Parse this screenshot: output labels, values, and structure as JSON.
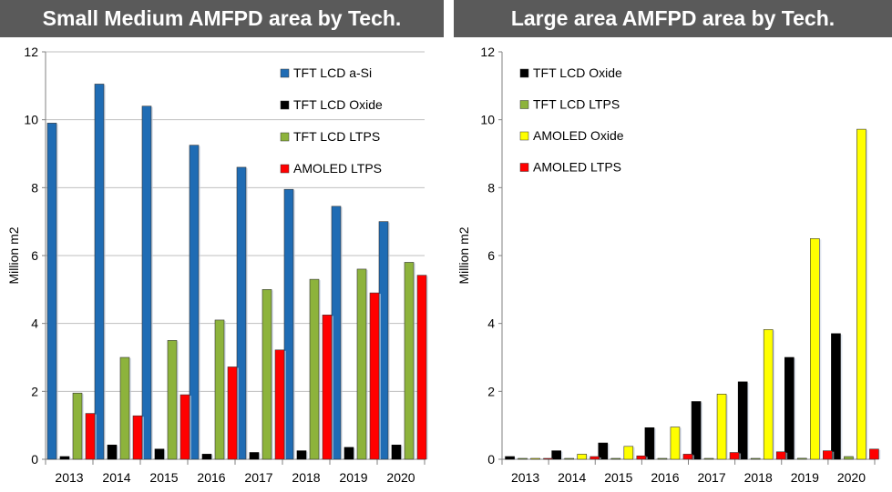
{
  "chart_data": [
    {
      "type": "bar",
      "title": "Small Medium AMFPD area by Tech.",
      "xlabel": "",
      "ylabel": "Million m2",
      "ylim": [
        0,
        12
      ],
      "yticks": [
        0,
        2,
        4,
        6,
        8,
        10,
        12
      ],
      "grid": true,
      "legend_position": "top-right",
      "categories": [
        "2013",
        "2014",
        "2015",
        "2016",
        "2017",
        "2018",
        "2019",
        "2020"
      ],
      "series": [
        {
          "name": "TFT LCD a-Si",
          "color": "#1f6cb4",
          "values": [
            9.9,
            11.05,
            10.4,
            9.25,
            8.6,
            7.95,
            7.45,
            7.0
          ]
        },
        {
          "name": "TFT LCD Oxide",
          "color": "#000000",
          "values": [
            0.08,
            0.42,
            0.3,
            0.15,
            0.2,
            0.25,
            0.35,
            0.42
          ]
        },
        {
          "name": "TFT LCD LTPS",
          "color": "#8db33c",
          "values": [
            1.95,
            3.0,
            3.5,
            4.1,
            5.0,
            5.3,
            5.6,
            5.8
          ]
        },
        {
          "name": "AMOLED LTPS",
          "color": "#ff0000",
          "values": [
            1.35,
            1.28,
            1.9,
            2.72,
            3.22,
            4.25,
            4.9,
            5.42
          ]
        }
      ]
    },
    {
      "type": "bar",
      "title": "Large area AMFPD area by Tech.",
      "xlabel": "",
      "ylabel": "Million m2",
      "ylim": [
        0,
        12
      ],
      "yticks": [
        0,
        2,
        4,
        6,
        8,
        10,
        12
      ],
      "grid": false,
      "legend_position": "top-left",
      "categories": [
        "2013",
        "2014",
        "2015",
        "2016",
        "2017",
        "2018",
        "2019",
        "2020"
      ],
      "series": [
        {
          "name": "TFT LCD Oxide",
          "color": "#000000",
          "values": [
            0.08,
            0.25,
            0.48,
            0.93,
            1.7,
            2.28,
            3.0,
            3.7
          ]
        },
        {
          "name": "TFT LCD LTPS",
          "color": "#8db33c",
          "values": [
            0.02,
            0.02,
            0.02,
            0.02,
            0.02,
            0.02,
            0.03,
            0.08
          ]
        },
        {
          "name": "AMOLED Oxide",
          "color": "#ffff00",
          "values": [
            0.02,
            0.15,
            0.38,
            0.95,
            1.92,
            3.82,
            6.5,
            9.72
          ]
        },
        {
          "name": "AMOLED LTPS",
          "color": "#ff0000",
          "values": [
            0.01,
            0.08,
            0.1,
            0.15,
            0.2,
            0.22,
            0.25,
            0.3
          ]
        }
      ]
    }
  ]
}
